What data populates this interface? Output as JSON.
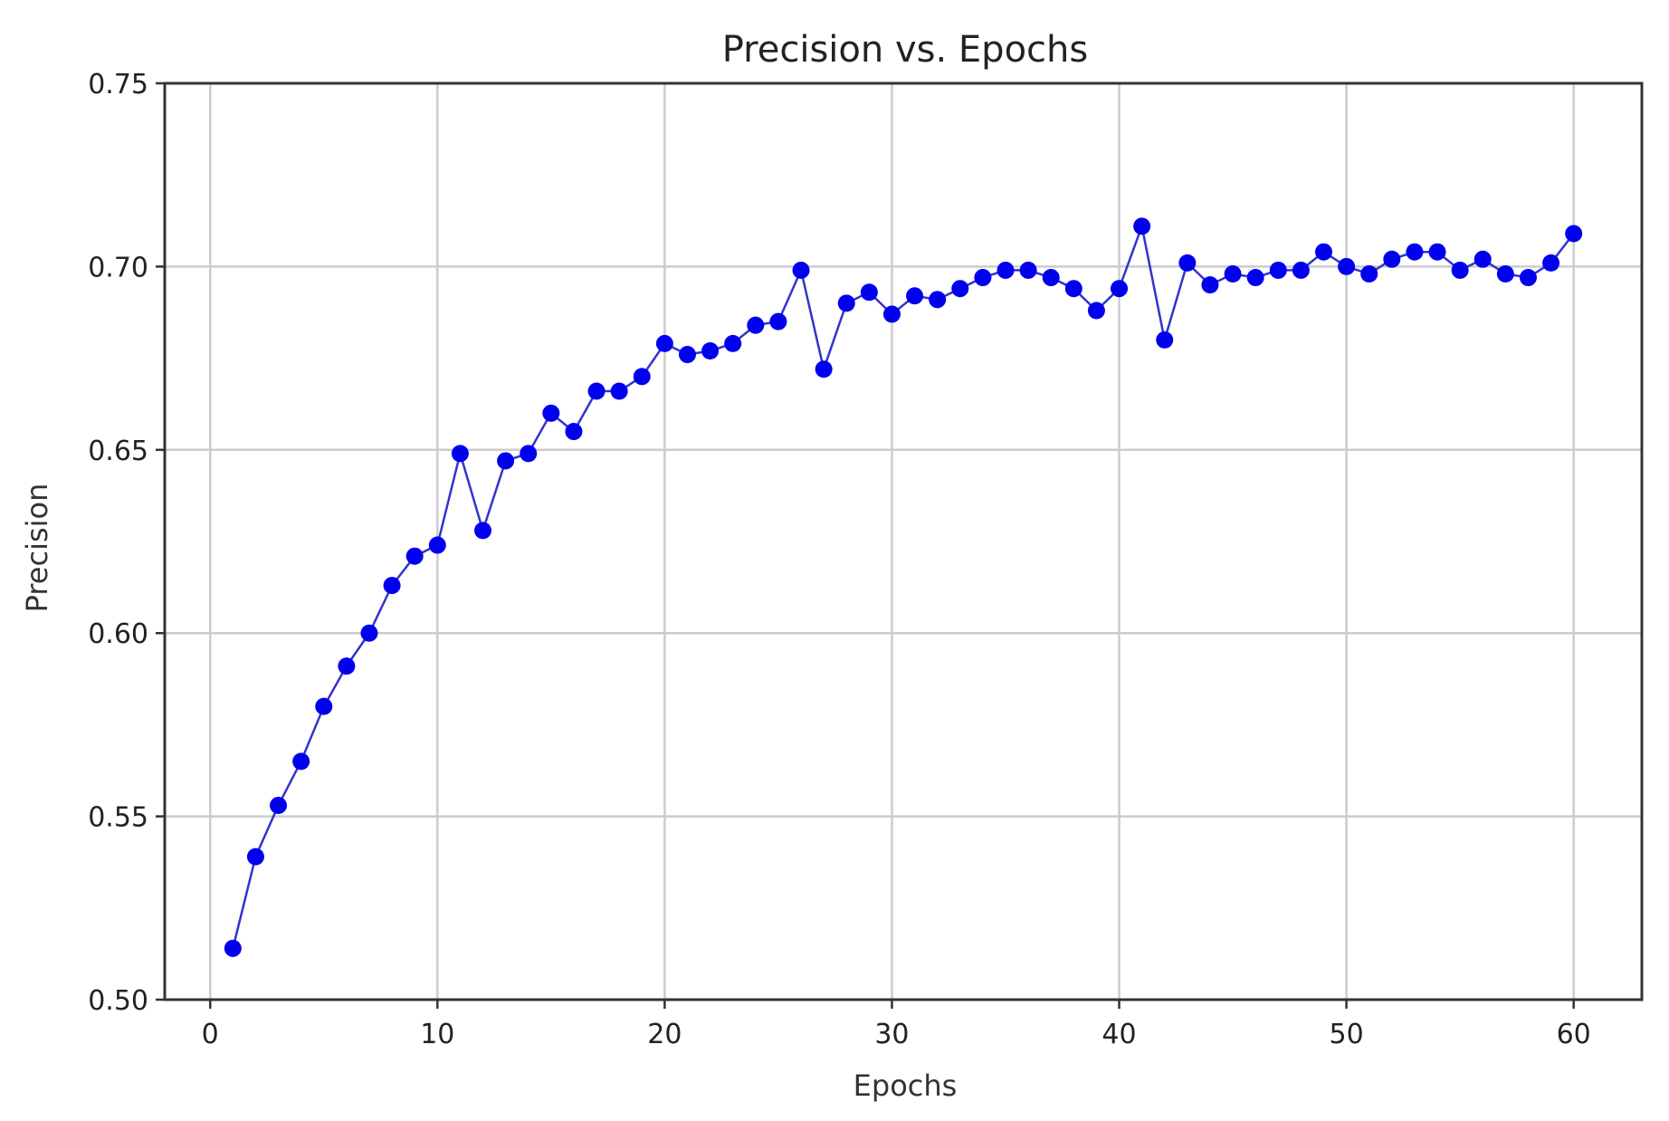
{
  "chart_data": {
    "type": "line",
    "title": "Precision vs. Epochs",
    "xlabel": "Epochs",
    "ylabel": "Precision",
    "xlim": [
      -2,
      63
    ],
    "ylim": [
      0.5,
      0.75
    ],
    "xticks": [
      0,
      10,
      20,
      30,
      40,
      50,
      60
    ],
    "yticks": [
      "0.50",
      "0.55",
      "0.60",
      "0.65",
      "0.70",
      "0.75"
    ],
    "grid": true,
    "line_color": "#3333cc",
    "marker_color": "#0000ee",
    "series": [
      {
        "x": [
          1,
          2,
          3,
          4,
          5,
          6,
          7,
          8,
          9,
          10,
          11,
          12,
          13,
          14,
          15,
          16,
          17,
          18,
          19,
          20,
          21,
          22,
          23,
          24,
          25,
          26,
          27,
          28,
          29,
          30,
          31,
          32,
          33,
          34,
          35,
          36,
          37,
          38,
          39,
          40,
          41,
          42,
          43,
          44,
          45,
          46,
          47,
          48,
          49,
          50,
          51,
          52,
          53,
          54,
          55,
          56,
          57,
          58,
          59,
          60
        ],
        "y": [
          0.514,
          0.539,
          0.553,
          0.565,
          0.58,
          0.591,
          0.6,
          0.613,
          0.621,
          0.624,
          0.649,
          0.628,
          0.647,
          0.649,
          0.66,
          0.655,
          0.666,
          0.666,
          0.67,
          0.679,
          0.676,
          0.677,
          0.679,
          0.684,
          0.685,
          0.699,
          0.672,
          0.69,
          0.693,
          0.687,
          0.692,
          0.691,
          0.694,
          0.697,
          0.699,
          0.699,
          0.697,
          0.694,
          0.688,
          0.694,
          0.711,
          0.68,
          0.701,
          0.695,
          0.698,
          0.697,
          0.699,
          0.699,
          0.704,
          0.7,
          0.698,
          0.702,
          0.704,
          0.704,
          0.699,
          0.702,
          0.698,
          0.697,
          0.701,
          0.709
        ]
      }
    ]
  }
}
